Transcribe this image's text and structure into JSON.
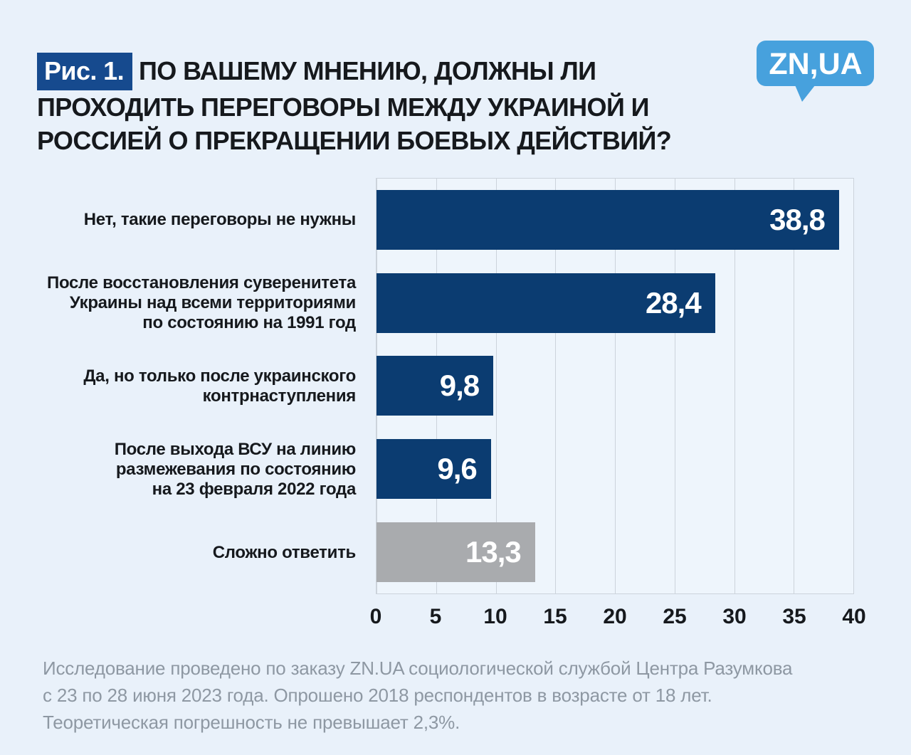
{
  "page": {
    "figure_tag": "Рис. 1.",
    "title": "ПО ВАШЕМУ МНЕНИЮ, ДОЛЖНЫ ЛИ ПРОХОДИТЬ ПЕРЕГОВОРЫ МЕЖДУ УКРАИНОЙ И РОССИЕЙ О ПРЕКРАЩЕНИИ БОЕВЫХ ДЕЙСТВИЙ?",
    "footnote": "Исследование проведено по заказу ZN.UA социологической службой Центра Разумкова\nс 23 по 28 июня 2023 года. Опрошено 2018 респондентов в возрасте от 18 лет.\nТеоретическая погрешность не превышает 2,3%."
  },
  "logo": {
    "text": "ZN,UA"
  },
  "colors": {
    "page_bg": "#e9f1fa",
    "plot_bg": "#eef5fc",
    "grid": "#ccd3db",
    "primary": "#0b3c71",
    "muted": "#a9abae",
    "chip_bg": "#164a8e",
    "logo_blue": "#47a1dd",
    "text": "#16191d",
    "footnote_text": "#8e98a3",
    "value_text": "#ffffff"
  },
  "chart_data": {
    "type": "bar",
    "orientation": "horizontal",
    "title": "ПО ВАШЕМУ МНЕНИЮ, ДОЛЖНЫ ЛИ ПРОХОДИТЬ ПЕРЕГОВОРЫ МЕЖДУ УКРАИНОЙ И РОССИЕЙ О ПРЕКРАЩЕНИИ БОЕВЫХ ДЕЙСТВИЙ?",
    "categories": [
      "Нет, такие переговоры не нужны",
      "После восстановления суверенитета\nУкраины над всеми территориями\nпо состоянию на 1991 год",
      "Да, но только после украинского\nконтрнаступления",
      "После выхода ВСУ на линию\nразмежевания по состоянию\nна 23 февраля 2022 года",
      "Сложно ответить"
    ],
    "values": [
      38.8,
      28.4,
      9.8,
      9.6,
      13.3
    ],
    "value_labels": [
      "38,8",
      "28,4",
      "9,8",
      "9,6",
      "13,3"
    ],
    "bar_color_keys": [
      "primary",
      "primary",
      "primary",
      "primary",
      "muted"
    ],
    "xlabel": "",
    "ylabel": "",
    "xlim": [
      0,
      40
    ],
    "xticks": [
      0,
      5,
      10,
      15,
      20,
      25,
      30,
      35,
      40
    ],
    "grid": "vertical",
    "legend": "none"
  }
}
